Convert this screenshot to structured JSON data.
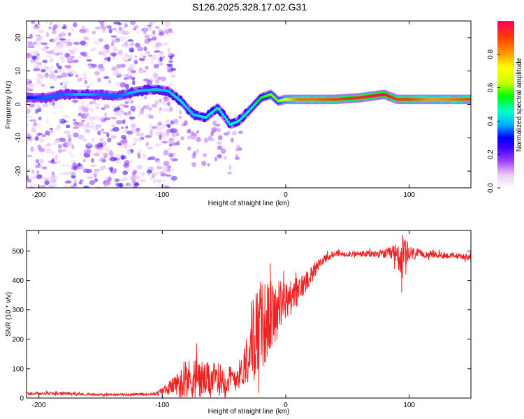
{
  "title": "S126.2025.328.17.02.G31",
  "chart_data": [
    {
      "type": "heatmap",
      "title": "S126.2025.328.17.02.G31",
      "xlabel": "Height of straight line (km)",
      "ylabel": "Frequency (Hz)",
      "xlim": [
        -210,
        150
      ],
      "ylim": [
        -25,
        25
      ],
      "xticks": [
        -200,
        -100,
        0,
        100
      ],
      "yticks": [
        -20,
        -10,
        0,
        10,
        20
      ],
      "colorbar": {
        "label": "Normalized spectral amplitude",
        "range": [
          0,
          1
        ],
        "ticks": [
          "0.0",
          "0.2",
          "0.4",
          "0.6",
          "0.8"
        ],
        "colors": [
          "#ffffff",
          "#e9c8f5",
          "#a040ff",
          "#3a00ff",
          "#0000ff",
          "#00b4ff",
          "#00ffc8",
          "#00ff00",
          "#c8ff00",
          "#ffff00",
          "#ffa000",
          "#ff3c00",
          "#ff0064"
        ]
      },
      "ridge": {
        "x": [
          -210,
          -195,
          -180,
          -165,
          -150,
          -135,
          -120,
          -105,
          -95,
          -85,
          -75,
          -65,
          -55,
          -45,
          -38,
          -30,
          -20,
          -12,
          -6,
          0,
          10,
          20,
          40,
          60,
          80,
          90,
          100,
          120,
          150
        ],
        "frequency": [
          2,
          2,
          3,
          3,
          3,
          2.5,
          4,
          4.5,
          4,
          1,
          -3,
          -4,
          -1,
          -6,
          -5,
          -2,
          2,
          3,
          1,
          1.5,
          1.5,
          1.5,
          1.5,
          2,
          3,
          1.5,
          1.5,
          1.5,
          1.5
        ],
        "amplitude": [
          0.3,
          0.35,
          0.35,
          0.4,
          0.35,
          0.35,
          0.4,
          0.4,
          0.4,
          0.45,
          0.4,
          0.45,
          0.45,
          0.45,
          0.45,
          0.45,
          0.55,
          0.6,
          0.6,
          0.7,
          0.85,
          0.85,
          0.9,
          0.95,
          1.0,
          0.9,
          0.9,
          0.8,
          0.9
        ]
      }
    },
    {
      "type": "line",
      "xlabel": "Height of straight line (km)",
      "ylabel": "SNR (10 * v/v)",
      "xlim": [
        -210,
        150
      ],
      "ylim": [
        0,
        570
      ],
      "xticks": [
        -200,
        -100,
        0,
        100
      ],
      "yticks": [
        0,
        100,
        200,
        300,
        400,
        500
      ],
      "color": "#ee2222",
      "series": [
        {
          "name": "SNR",
          "x": [
            -210,
            -180,
            -150,
            -120,
            -105,
            -95,
            -85,
            -75,
            -65,
            -55,
            -45,
            -35,
            -28,
            -22,
            -15,
            -10,
            0,
            10,
            20,
            30,
            40,
            60,
            80,
            90,
            95,
            100,
            110,
            130,
            150
          ],
          "mean": [
            15,
            15,
            12,
            12,
            15,
            35,
            55,
            70,
            60,
            65,
            60,
            90,
            200,
            240,
            260,
            290,
            330,
            360,
            420,
            470,
            490,
            490,
            490,
            490,
            470,
            490,
            490,
            485,
            480
          ],
          "noise": [
            5,
            5,
            4,
            4,
            6,
            20,
            45,
            80,
            60,
            55,
            50,
            50,
            140,
            160,
            140,
            110,
            70,
            50,
            30,
            15,
            10,
            10,
            15,
            35,
            90,
            30,
            12,
            10,
            10
          ]
        }
      ]
    }
  ]
}
